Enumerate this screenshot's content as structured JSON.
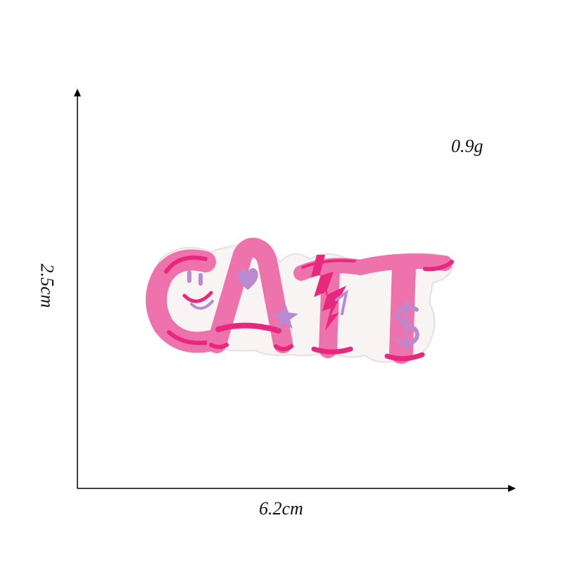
{
  "weight_label": "0.9g",
  "width_label": "6.2cm",
  "height_label": "2.5cm",
  "patch": {
    "text": "CAT",
    "icons": [
      "smiley-face-icon",
      "heart-icon",
      "star-icon",
      "lightning-bolt-icon",
      "dollar-sign-icon"
    ],
    "colors": {
      "background": "#f7f4f3",
      "pink": "#ee73ad",
      "hot_pink": "#e8287e",
      "lavender": "#b98ad0"
    }
  },
  "colors": {
    "axis": "#000000",
    "label": "#111111"
  }
}
